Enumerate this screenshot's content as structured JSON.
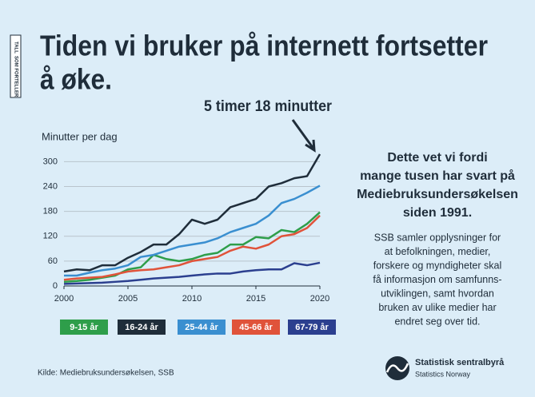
{
  "chart_data": {
    "type": "line",
    "badge": [
      "TALL",
      "SOM FORTELLER"
    ],
    "title_lines": [
      "Tiden vi bruker på internett fortsetter",
      "å øke."
    ],
    "annotation": "5 timer 18 minutter",
    "ylabel": "Minutter per dag",
    "x": [
      2000,
      2001,
      2002,
      2003,
      2004,
      2005,
      2006,
      2007,
      2008,
      2009,
      2010,
      2011,
      2012,
      2013,
      2014,
      2015,
      2016,
      2017,
      2018,
      2019,
      2020
    ],
    "xlim": [
      2000,
      2020
    ],
    "xticks": [
      2000,
      2005,
      2010,
      2015,
      2020
    ],
    "ylim": [
      0,
      320
    ],
    "yticks": [
      0,
      60,
      120,
      180,
      240,
      300
    ],
    "grid": true,
    "series": [
      {
        "name": "9-15 år",
        "color": "#2e9e4a",
        "values": [
          10,
          12,
          15,
          20,
          25,
          40,
          45,
          75,
          65,
          60,
          65,
          75,
          80,
          100,
          100,
          118,
          115,
          135,
          130,
          150,
          178
        ]
      },
      {
        "name": "16-24 år",
        "color": "#1f2d3a",
        "values": [
          35,
          40,
          38,
          50,
          50,
          68,
          82,
          100,
          100,
          125,
          160,
          150,
          160,
          190,
          200,
          210,
          240,
          248,
          260,
          265,
          318
        ]
      },
      {
        "name": "25-44 år",
        "color": "#3a8fd0",
        "values": [
          25,
          25,
          32,
          38,
          42,
          50,
          70,
          75,
          85,
          95,
          100,
          105,
          115,
          130,
          140,
          150,
          170,
          200,
          210,
          225,
          242
        ]
      },
      {
        "name": "45-66 år",
        "color": "#e0533a",
        "values": [
          15,
          18,
          20,
          22,
          28,
          35,
          38,
          40,
          45,
          50,
          60,
          65,
          70,
          85,
          95,
          90,
          100,
          120,
          125,
          140,
          170
        ]
      },
      {
        "name": "67-79 år",
        "color": "#2b3f8f",
        "values": [
          5,
          6,
          7,
          8,
          10,
          12,
          15,
          18,
          20,
          22,
          25,
          28,
          30,
          30,
          35,
          38,
          40,
          40,
          55,
          50,
          56
        ]
      }
    ],
    "heading_lines": [
      "Dette vet vi fordi",
      "mange tusen har svart på",
      "Mediebruksundersøkelsen",
      "siden 1991."
    ],
    "body_lines": [
      "SSB samler opplysninger for",
      "at befolkningen, medier,",
      "forskere og myndigheter skal",
      "få informasjon om samfunns-",
      "utviklingen, samt hvordan",
      "bruken av ulike medier har",
      "endret seg over tid."
    ],
    "source": "Kilde: Mediebruksundersøkelsen, SSB",
    "logo_name": "Statistisk sentralbyrå",
    "logo_sub": "Statistics Norway"
  }
}
